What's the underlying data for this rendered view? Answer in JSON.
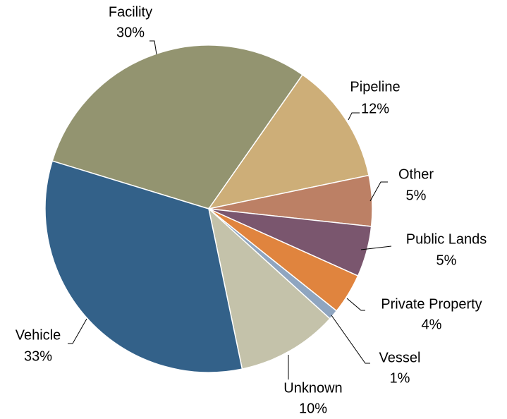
{
  "chart_data": {
    "type": "pie",
    "categories": [
      "Facility",
      "Pipeline",
      "Other",
      "Public Lands",
      "Private Property",
      "Vessel",
      "Unknown",
      "Vehicle"
    ],
    "values": [
      30,
      12,
      5,
      5,
      4,
      1,
      10,
      33
    ],
    "value_labels": [
      "30%",
      "12%",
      "5%",
      "5%",
      "4%",
      "1%",
      "10%",
      "33%"
    ],
    "colors": [
      "#939470",
      "#cdae78",
      "#bc8065",
      "#7a566e",
      "#e0843e",
      "#8fa5c0",
      "#c4c2aa",
      "#336189"
    ]
  }
}
